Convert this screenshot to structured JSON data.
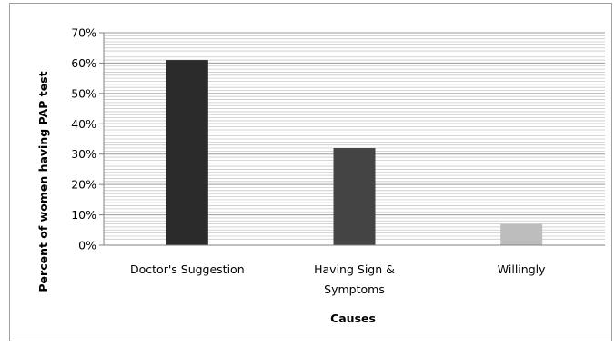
{
  "chart_data": {
    "type": "bar",
    "title": "",
    "xlabel": "Causes",
    "ylabel": "Percent of women having PAP test",
    "categories": [
      "Doctor's Suggestion",
      "Having Sign & Symptoms",
      "Willingly"
    ],
    "category_lines": [
      [
        "Doctor's Suggestion"
      ],
      [
        "Having Sign &",
        "Symptoms"
      ],
      [
        "Willingly"
      ]
    ],
    "values": [
      61,
      32,
      7
    ],
    "bar_colors": [
      "#2b2b2b",
      "#444444",
      "#bdbdbd"
    ],
    "ylim": [
      0,
      70
    ],
    "yticks": [
      0,
      10,
      20,
      30,
      40,
      50,
      60,
      70
    ],
    "ytick_labels": [
      "0%",
      "10%",
      "20%",
      "30%",
      "40%",
      "50%",
      "60%",
      "70%"
    ],
    "grid": true,
    "grid_minor_step": 1,
    "legend": "none"
  }
}
